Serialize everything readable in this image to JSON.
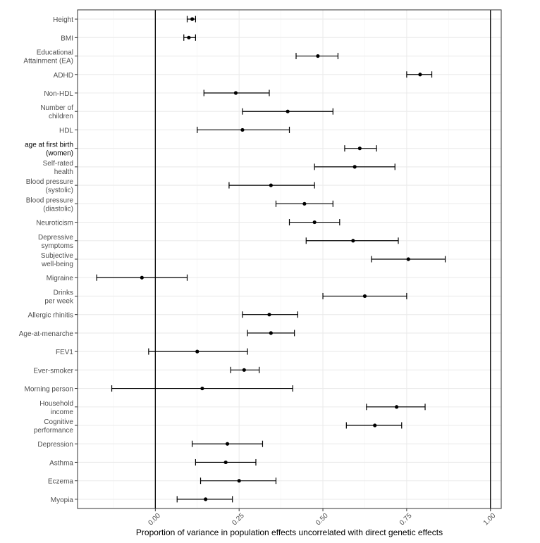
{
  "chart_data": {
    "type": "scatter",
    "subtype": "forest-plot",
    "title": "",
    "xlabel": "Proportion of variance in population effects uncorrelated with direct genetic effects",
    "ylabel": "",
    "xlim": [
      -0.23,
      1.03
    ],
    "x_ticks": [
      0.0,
      0.25,
      0.5,
      0.75,
      1.0
    ],
    "x_tick_labels": [
      "0.00",
      "0.25",
      "0.50",
      "0.75",
      "1.00"
    ],
    "reference_lines": [
      0.0,
      1.0
    ],
    "grid": true,
    "theme": "bw",
    "point_color": "#000000",
    "rows": [
      {
        "label": [
          "Height"
        ],
        "estimate": 0.11,
        "lower": 0.095,
        "upper": 0.12
      },
      {
        "label": [
          "BMI"
        ],
        "estimate": 0.1,
        "lower": 0.085,
        "upper": 0.12
      },
      {
        "label": [
          "Educational",
          "Attainment (EA)"
        ],
        "estimate": 0.485,
        "lower": 0.42,
        "upper": 0.545
      },
      {
        "label": [
          "ADHD"
        ],
        "estimate": 0.79,
        "lower": 0.75,
        "upper": 0.825
      },
      {
        "label": [
          "Non-HDL"
        ],
        "estimate": 0.24,
        "lower": 0.145,
        "upper": 0.34
      },
      {
        "label": [
          "Number of",
          "children"
        ],
        "estimate": 0.395,
        "lower": 0.26,
        "upper": 0.53
      },
      {
        "label": [
          "HDL"
        ],
        "estimate": 0.26,
        "lower": 0.125,
        "upper": 0.4
      },
      {
        "label": [
          "age at first birth",
          "(women)"
        ],
        "estimate": 0.61,
        "lower": 0.565,
        "upper": 0.66,
        "bold": true
      },
      {
        "label": [
          "Self-rated",
          "health"
        ],
        "estimate": 0.595,
        "lower": 0.475,
        "upper": 0.715
      },
      {
        "label": [
          "Blood pressure",
          "(systolic)"
        ],
        "estimate": 0.345,
        "lower": 0.22,
        "upper": 0.475
      },
      {
        "label": [
          "Blood pressure",
          "(diastolic)"
        ],
        "estimate": 0.445,
        "lower": 0.36,
        "upper": 0.53
      },
      {
        "label": [
          "Neuroticism"
        ],
        "estimate": 0.475,
        "lower": 0.4,
        "upper": 0.55
      },
      {
        "label": [
          "Depressive",
          "symptoms"
        ],
        "estimate": 0.59,
        "lower": 0.45,
        "upper": 0.725
      },
      {
        "label": [
          "Subjective",
          "well-being"
        ],
        "estimate": 0.755,
        "lower": 0.645,
        "upper": 0.865
      },
      {
        "label": [
          "Migraine"
        ],
        "estimate": -0.04,
        "lower": -0.175,
        "upper": 0.095
      },
      {
        "label": [
          "Drinks",
          "per week"
        ],
        "estimate": 0.625,
        "lower": 0.5,
        "upper": 0.75
      },
      {
        "label": [
          "Allergic rhinitis"
        ],
        "estimate": 0.34,
        "lower": 0.26,
        "upper": 0.425
      },
      {
        "label": [
          "Age-at-menarche"
        ],
        "estimate": 0.345,
        "lower": 0.275,
        "upper": 0.415
      },
      {
        "label": [
          "FEV1"
        ],
        "estimate": 0.125,
        "lower": -0.02,
        "upper": 0.275
      },
      {
        "label": [
          "Ever-smoker"
        ],
        "estimate": 0.265,
        "lower": 0.225,
        "upper": 0.31
      },
      {
        "label": [
          "Morning person"
        ],
        "estimate": 0.14,
        "lower": -0.13,
        "upper": 0.41
      },
      {
        "label": [
          "Household",
          "income"
        ],
        "estimate": 0.72,
        "lower": 0.63,
        "upper": 0.805
      },
      {
        "label": [
          "Cognitive",
          "performance"
        ],
        "estimate": 0.655,
        "lower": 0.57,
        "upper": 0.735
      },
      {
        "label": [
          "Depression"
        ],
        "estimate": 0.215,
        "lower": 0.11,
        "upper": 0.32
      },
      {
        "label": [
          "Asthma"
        ],
        "estimate": 0.21,
        "lower": 0.12,
        "upper": 0.3
      },
      {
        "label": [
          "Eczema"
        ],
        "estimate": 0.25,
        "lower": 0.135,
        "upper": 0.36
      },
      {
        "label": [
          "Myopia"
        ],
        "estimate": 0.15,
        "lower": 0.065,
        "upper": 0.23
      }
    ]
  }
}
